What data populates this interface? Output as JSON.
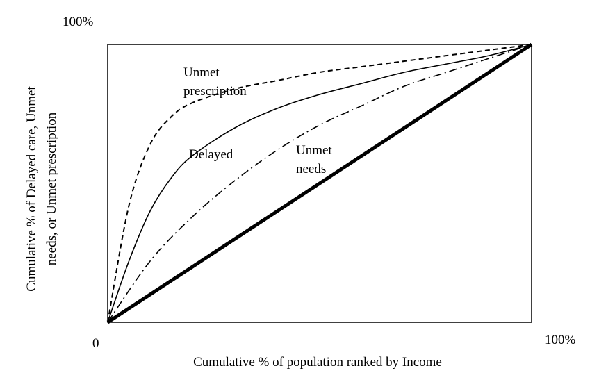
{
  "chart_data": {
    "type": "line",
    "title": "",
    "xlabel": "Cumulative % of population ranked by Income",
    "ylabel_lines": [
      "Cumulative % of Delayed care, Unmet",
      "needs, or Unmet prescription"
    ],
    "xlim": [
      0,
      100
    ],
    "ylim": [
      0,
      100
    ],
    "grid": false,
    "tick_labels": {
      "origin": "0",
      "x_max": "100%",
      "y_max": "100%"
    },
    "series": [
      {
        "name_lines": [
          "Unmet",
          "prescription"
        ],
        "style": "dashed",
        "x": [
          0,
          5,
          10,
          15,
          20,
          30,
          40,
          50,
          60,
          70,
          80,
          90,
          100
        ],
        "y": [
          0,
          42,
          64,
          74,
          79,
          84,
          87,
          90,
          92,
          94,
          96,
          98,
          100
        ]
      },
      {
        "name_lines": [
          "Delayed"
        ],
        "style": "solid",
        "x": [
          0,
          5,
          10,
          15,
          20,
          30,
          40,
          50,
          60,
          70,
          80,
          90,
          100
        ],
        "y": [
          0,
          22,
          40,
          52,
          60,
          70,
          77,
          82,
          86,
          90,
          93,
          96,
          100
        ]
      },
      {
        "name_lines": [
          "Unmet",
          "needs"
        ],
        "style": "dashdot",
        "x": [
          0,
          10,
          20,
          30,
          40,
          50,
          60,
          70,
          80,
          90,
          100
        ],
        "y": [
          0,
          22,
          38,
          51,
          62,
          71,
          78,
          85,
          90,
          95,
          100
        ]
      },
      {
        "name_lines": [],
        "style": "thick-solid",
        "x": [
          0,
          100
        ],
        "y": [
          0,
          100
        ]
      }
    ]
  }
}
